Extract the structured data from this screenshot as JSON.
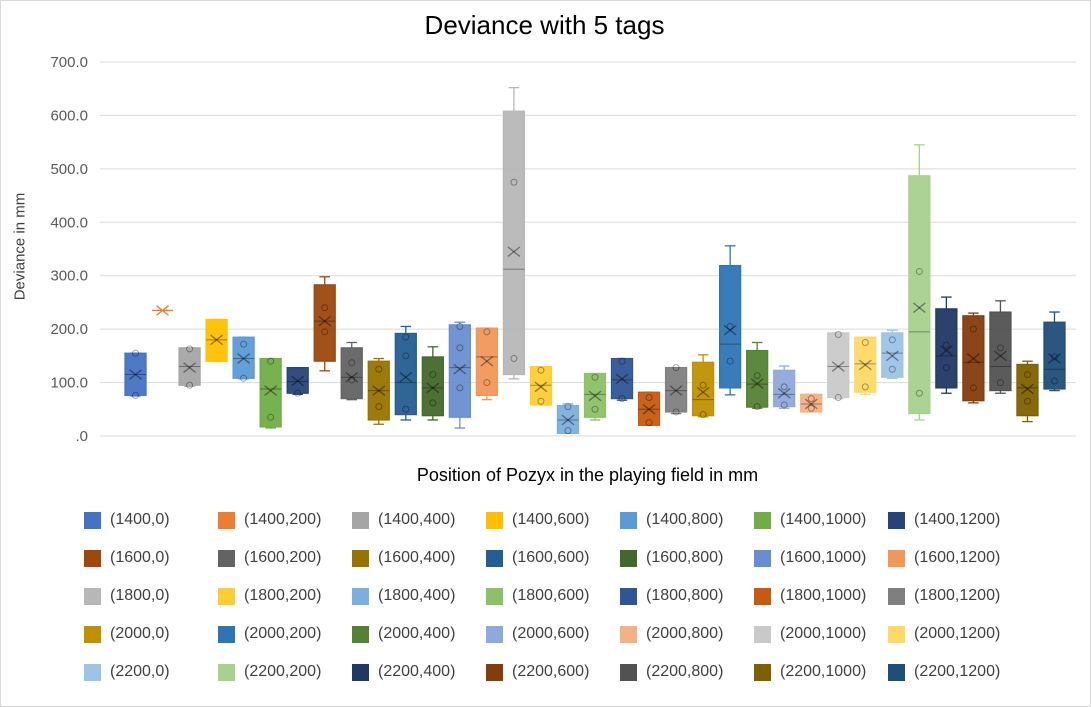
{
  "chart_data": {
    "type": "box",
    "title": "Deviance with 5 tags",
    "xlabel": "Position of Pozyx in the playing field in mm",
    "ylabel": "Deviance in mm",
    "ylim": [
      0,
      700
    ],
    "ytick_values": [
      0,
      100,
      200,
      300,
      400,
      500,
      600,
      700
    ],
    "ytick_labels": [
      ".0",
      "100.0",
      "200.0",
      "300.0",
      "400.0",
      "500.0",
      "600.0",
      "700.0"
    ],
    "grid": "horizontal",
    "legend_position": "bottom",
    "series": [
      {
        "name": "(1400,0)",
        "color": "#4472C4",
        "min": 75,
        "q1": 76,
        "median": 115,
        "q3": 155,
        "max": 155,
        "mean": 115,
        "points": [
          76,
          155
        ]
      },
      {
        "name": "(1400,200)",
        "color": "#ED7D31",
        "min": 235,
        "q1": 235,
        "median": 235,
        "q3": 235,
        "max": 235,
        "mean": 235,
        "points": []
      },
      {
        "name": "(1400,400)",
        "color": "#A5A5A5",
        "min": 93,
        "q1": 95,
        "median": 130,
        "q3": 165,
        "max": 165,
        "mean": 128,
        "points": [
          95,
          163
        ]
      },
      {
        "name": "(1400,600)",
        "color": "#FFC000",
        "min": 140,
        "q1": 140,
        "median": 180,
        "q3": 218,
        "max": 218,
        "mean": 180,
        "points": []
      },
      {
        "name": "(1400,800)",
        "color": "#5B9BD5",
        "min": 107,
        "q1": 108,
        "median": 145,
        "q3": 185,
        "max": 185,
        "mean": 145,
        "points": [
          108,
          172
        ]
      },
      {
        "name": "(1400,1000)",
        "color": "#70AD47",
        "min": 15,
        "q1": 17,
        "median": 88,
        "q3": 145,
        "max": 145,
        "mean": 85,
        "points": [
          35,
          140
        ]
      },
      {
        "name": "(1400,1200)",
        "color": "#264478",
        "min": 78,
        "q1": 80,
        "median": 102,
        "q3": 128,
        "max": 128,
        "mean": 103,
        "points": [
          80
        ]
      },
      {
        "name": "(1600,0)",
        "color": "#9E480E",
        "min": 122,
        "q1": 140,
        "median": 215,
        "q3": 283,
        "max": 298,
        "mean": 215,
        "points": [
          195,
          240
        ]
      },
      {
        "name": "(1600,200)",
        "color": "#636363",
        "min": 68,
        "q1": 70,
        "median": 110,
        "q3": 165,
        "max": 175,
        "mean": 110,
        "points": [
          105,
          137
        ]
      },
      {
        "name": "(1600,400)",
        "color": "#997300",
        "min": 22,
        "q1": 30,
        "median": 85,
        "q3": 140,
        "max": 145,
        "mean": 85,
        "points": [
          55,
          125
        ]
      },
      {
        "name": "(1600,600)",
        "color": "#255E91",
        "min": 30,
        "q1": 40,
        "median": 100,
        "q3": 192,
        "max": 205,
        "mean": 110,
        "points": [
          50,
          150,
          185
        ]
      },
      {
        "name": "(1600,800)",
        "color": "#43682B",
        "min": 30,
        "q1": 38,
        "median": 90,
        "q3": 148,
        "max": 167,
        "mean": 90,
        "points": [
          62,
          115
        ]
      },
      {
        "name": "(1600,1000)",
        "color": "#698ED0",
        "min": 15,
        "q1": 35,
        "median": 128,
        "q3": 208,
        "max": 213,
        "mean": 125,
        "points": [
          90,
          165,
          205
        ]
      },
      {
        "name": "(1600,1200)",
        "color": "#F1975A",
        "min": 68,
        "q1": 76,
        "median": 148,
        "q3": 202,
        "max": 202,
        "mean": 140,
        "points": [
          100,
          195
        ]
      },
      {
        "name": "(1800,0)",
        "color": "#B7B7B7",
        "min": 107,
        "q1": 115,
        "median": 312,
        "q3": 608,
        "max": 652,
        "mean": 345,
        "points": [
          145,
          475
        ]
      },
      {
        "name": "(1800,200)",
        "color": "#FFCD33",
        "min": 58,
        "q1": 58,
        "median": 95,
        "q3": 130,
        "max": 130,
        "mean": 92,
        "points": [
          65,
          123
        ]
      },
      {
        "name": "(1800,400)",
        "color": "#7CAFDD",
        "min": 5,
        "q1": 5,
        "median": 30,
        "q3": 57,
        "max": 60,
        "mean": 30,
        "points": [
          10,
          55
        ]
      },
      {
        "name": "(1800,600)",
        "color": "#8CC168",
        "min": 30,
        "q1": 35,
        "median": 78,
        "q3": 117,
        "max": 117,
        "mean": 75,
        "points": [
          50,
          110
        ]
      },
      {
        "name": "(1800,800)",
        "color": "#2F5597",
        "min": 67,
        "q1": 70,
        "median": 105,
        "q3": 145,
        "max": 145,
        "mean": 107,
        "points": [
          70,
          140
        ]
      },
      {
        "name": "(1800,1000)",
        "color": "#C55A11",
        "min": 20,
        "q1": 20,
        "median": 50,
        "q3": 82,
        "max": 82,
        "mean": 50,
        "points": [
          25,
          72
        ]
      },
      {
        "name": "(1800,1200)",
        "color": "#7F7F7F",
        "min": 42,
        "q1": 45,
        "median": 85,
        "q3": 128,
        "max": 128,
        "mean": 85,
        "points": [
          45,
          128
        ]
      },
      {
        "name": "(2000,0)",
        "color": "#BF9000",
        "min": 36,
        "q1": 38,
        "median": 68,
        "q3": 138,
        "max": 152,
        "mean": 82,
        "points": [
          40,
          95
        ]
      },
      {
        "name": "(2000,200)",
        "color": "#2E75B6",
        "min": 77,
        "q1": 90,
        "median": 172,
        "q3": 319,
        "max": 356,
        "mean": 198,
        "points": [
          140,
          205
        ]
      },
      {
        "name": "(2000,400)",
        "color": "#548235",
        "min": 52,
        "q1": 54,
        "median": 97,
        "q3": 160,
        "max": 175,
        "mean": 98,
        "points": [
          55,
          113
        ]
      },
      {
        "name": "(2000,600)",
        "color": "#8EA9DB",
        "min": 52,
        "q1": 55,
        "median": 78,
        "q3": 123,
        "max": 131,
        "mean": 80,
        "points": [
          58,
          92
        ]
      },
      {
        "name": "(2000,800)",
        "color": "#F4B183",
        "min": 45,
        "q1": 45,
        "median": 60,
        "q3": 78,
        "max": 78,
        "mean": 60,
        "points": [
          52,
          70
        ]
      },
      {
        "name": "(2000,1000)",
        "color": "#C9C9C9",
        "min": 70,
        "q1": 72,
        "median": 130,
        "q3": 193,
        "max": 193,
        "mean": 130,
        "points": [
          72,
          190
        ]
      },
      {
        "name": "(2000,1200)",
        "color": "#FFD966",
        "min": 78,
        "q1": 82,
        "median": 135,
        "q3": 185,
        "max": 185,
        "mean": 133,
        "points": [
          92,
          175
        ]
      },
      {
        "name": "(2200,0)",
        "color": "#9DC3E6",
        "min": 108,
        "q1": 110,
        "median": 155,
        "q3": 193,
        "max": 198,
        "mean": 150,
        "points": [
          125,
          180
        ]
      },
      {
        "name": "(2200,200)",
        "color": "#A9D18E",
        "min": 30,
        "q1": 42,
        "median": 195,
        "q3": 487,
        "max": 545,
        "mean": 240,
        "points": [
          80,
          308
        ]
      },
      {
        "name": "(2200,400)",
        "color": "#203864",
        "min": 80,
        "q1": 90,
        "median": 150,
        "q3": 238,
        "max": 260,
        "mean": 160,
        "points": [
          128,
          170
        ]
      },
      {
        "name": "(2200,600)",
        "color": "#843C0C",
        "min": 62,
        "q1": 66,
        "median": 138,
        "q3": 225,
        "max": 230,
        "mean": 145,
        "points": [
          90,
          200
        ]
      },
      {
        "name": "(2200,800)",
        "color": "#525252",
        "min": 80,
        "q1": 85,
        "median": 130,
        "q3": 232,
        "max": 253,
        "mean": 150,
        "points": [
          100,
          165
        ]
      },
      {
        "name": "(2200,1000)",
        "color": "#7F6000",
        "min": 27,
        "q1": 38,
        "median": 90,
        "q3": 134,
        "max": 140,
        "mean": 88,
        "points": [
          65,
          115
        ]
      },
      {
        "name": "(2200,1200)",
        "color": "#1F4E79",
        "min": 85,
        "q1": 88,
        "median": 125,
        "q3": 213,
        "max": 232,
        "mean": 145,
        "points": [
          103,
          148
        ]
      }
    ]
  }
}
